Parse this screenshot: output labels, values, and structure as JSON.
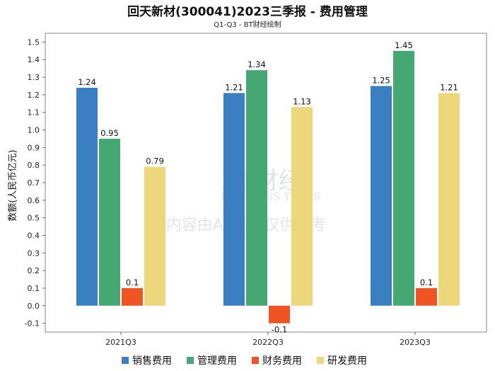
{
  "chart_data": {
    "type": "bar",
    "title": "回天新材(300041)2023三季报 - 费用管理",
    "subtitle": "Q1-Q3 - BT财经绘制",
    "ylabel": "数额(人民币亿元)",
    "xlabel": "",
    "categories": [
      "2021Q3",
      "2022Q3",
      "2023Q3"
    ],
    "series": [
      {
        "name": "销售费用",
        "color": "#3a7fc1",
        "values": [
          1.24,
          1.21,
          1.25
        ]
      },
      {
        "name": "管理费用",
        "color": "#45a872",
        "values": [
          0.95,
          1.34,
          1.45
        ]
      },
      {
        "name": "财务费用",
        "color": "#f05423",
        "values": [
          0.1,
          -0.1,
          0.1
        ]
      },
      {
        "name": "研发费用",
        "color": "#ecd77a",
        "values": [
          0.79,
          1.13,
          1.21
        ]
      }
    ],
    "ylim": [
      -0.15,
      1.55
    ],
    "yticks": [
      -0.1,
      0.0,
      0.1,
      0.2,
      0.3,
      0.4,
      0.5,
      0.6,
      0.7,
      0.8,
      0.9,
      1.0,
      1.1,
      1.2,
      1.3,
      1.4,
      1.5
    ],
    "grid": false,
    "legend_position": "bottom"
  },
  "watermark": {
    "brand": "BT财经",
    "brand_en": "BUSINESS TIMES",
    "notice": "内容由AI生成,仅供参考"
  }
}
